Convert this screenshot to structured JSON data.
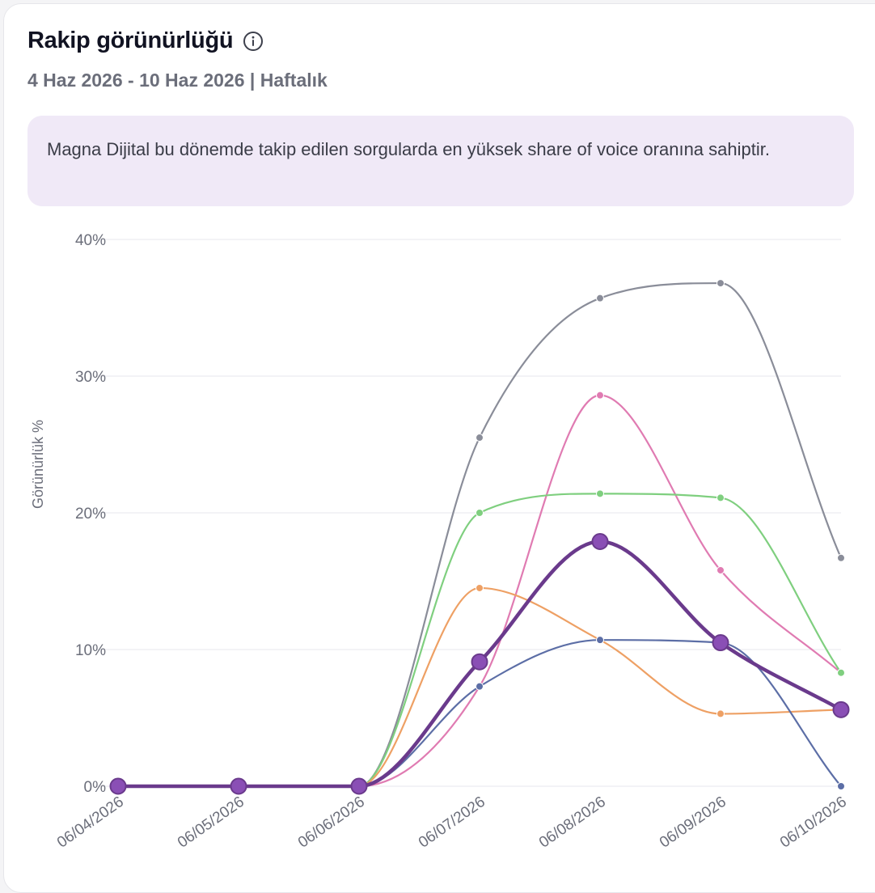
{
  "header": {
    "title": "Rakip görünürlüğü",
    "subtitle": "4 Haz 2026 - 10 Haz 2026 | Haftalık",
    "info_icon": "info-circle-icon"
  },
  "insight": {
    "text": "Magna Dijital bu dönemde takip edilen sorgularda en yüksek share of voice oranına sahiptir."
  },
  "chart_data": {
    "type": "line",
    "ylabel": "Görünürlük %",
    "xlabel": "",
    "ylim": [
      0,
      40
    ],
    "y_ticks": [
      0,
      10,
      20,
      30,
      40
    ],
    "y_tick_labels": [
      "0%",
      "10%",
      "20%",
      "30%",
      "40%"
    ],
    "x": [
      "06/04/2026",
      "06/05/2026",
      "06/06/2026",
      "06/07/2026",
      "06/08/2026",
      "06/09/2026",
      "06/10/2026"
    ],
    "grid": true,
    "legend": "none",
    "series": [
      {
        "color": "#8a8d99",
        "highlight": false,
        "values": [
          0,
          0,
          0,
          25.5,
          35.7,
          36.8,
          16.7
        ]
      },
      {
        "color": "#e07bb2",
        "highlight": false,
        "values": [
          0,
          0,
          0,
          7.3,
          28.6,
          15.8,
          8.3
        ]
      },
      {
        "color": "#7fcf7f",
        "highlight": false,
        "values": [
          0,
          0,
          0,
          20.0,
          21.4,
          21.1,
          8.3
        ]
      },
      {
        "color": "#eea064",
        "highlight": false,
        "values": [
          0,
          0,
          0,
          14.5,
          10.7,
          5.3,
          5.6
        ]
      },
      {
        "color": "#5c6ea6",
        "highlight": false,
        "values": [
          0,
          0,
          0,
          7.3,
          10.7,
          10.5,
          0
        ]
      },
      {
        "color": "#6a3a8c",
        "highlight": true,
        "values": [
          0,
          0,
          0,
          9.1,
          17.9,
          10.5,
          5.6
        ]
      }
    ]
  }
}
